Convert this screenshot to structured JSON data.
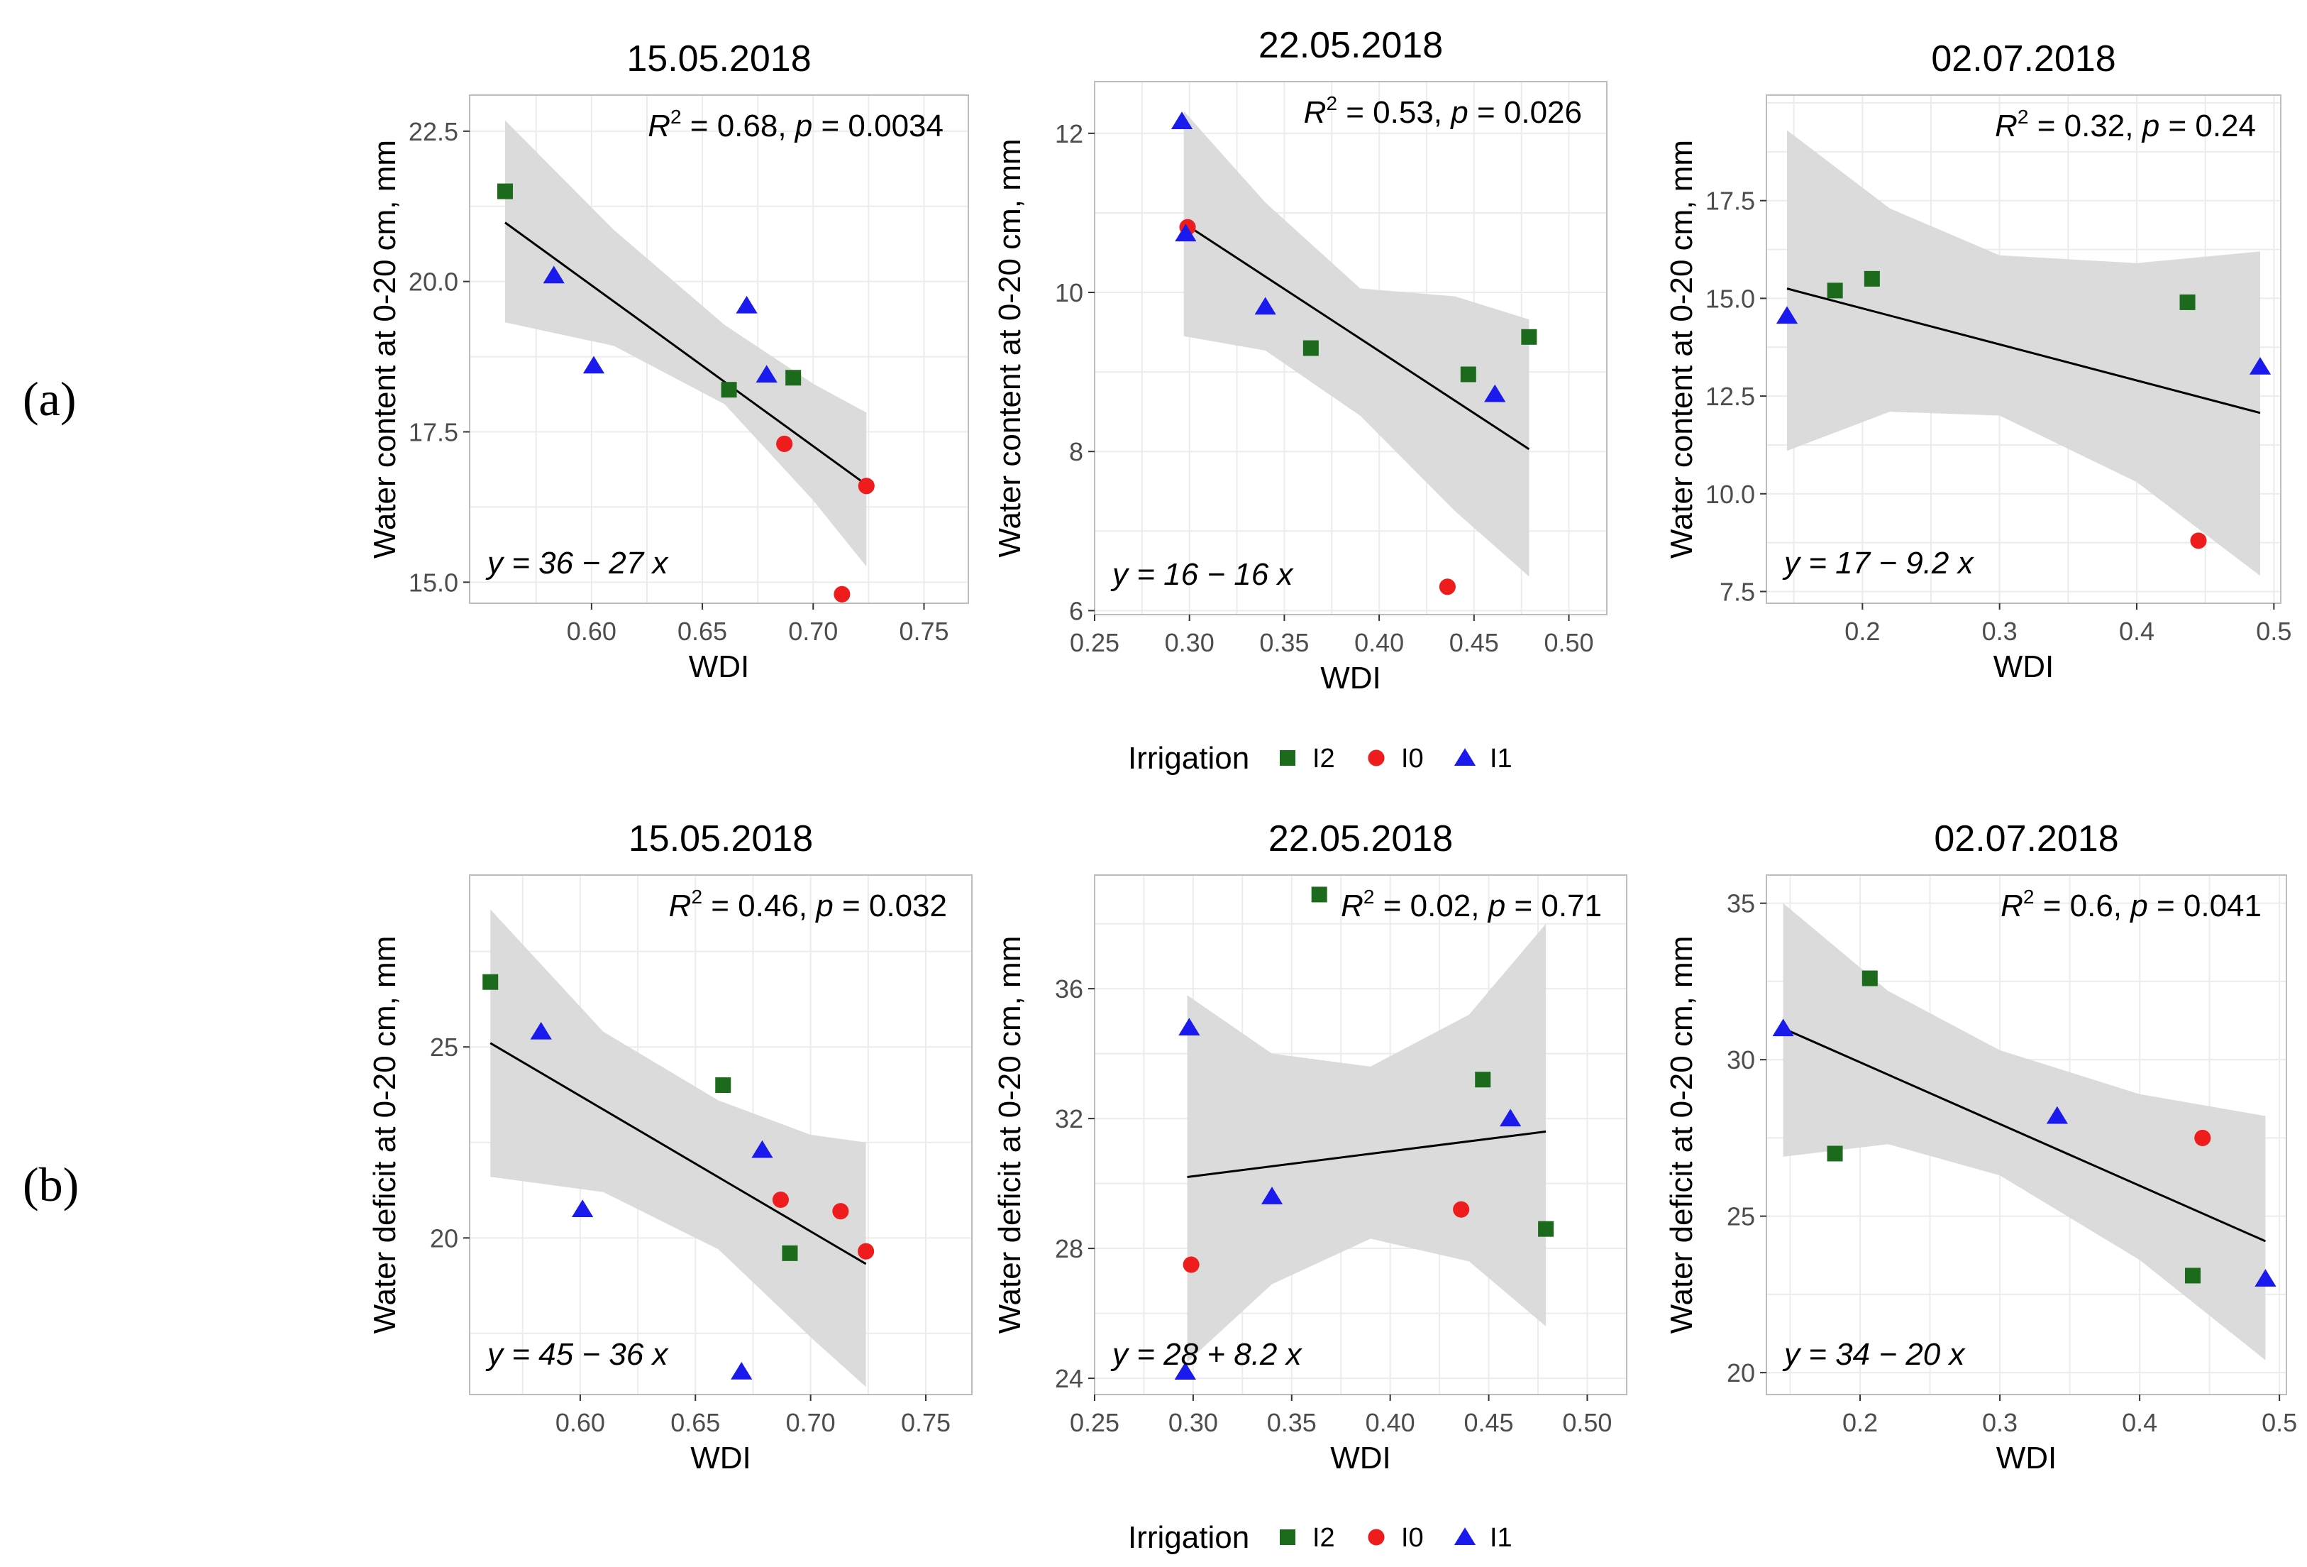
{
  "row_labels": {
    "a": "(a)",
    "b": "(b)"
  },
  "colors": {
    "I2": "#1c6b1c",
    "I0": "#ee1c1c",
    "I1": "#1a1aee",
    "ribbon": "#d9d9d9",
    "grid": "#ececec",
    "panel_border": "#bdbdbd",
    "axis_text": "#4d4d4d",
    "line": "#000000"
  },
  "legends": [
    {
      "title": "Irrigation",
      "entries": [
        {
          "key": "I2",
          "label": "I2",
          "shape": "square"
        },
        {
          "key": "I0",
          "label": "I0",
          "shape": "circle"
        },
        {
          "key": "I1",
          "label": "I1",
          "shape": "triangle"
        }
      ]
    },
    {
      "title": "Irrigation",
      "entries": [
        {
          "key": "I2",
          "label": "I2",
          "shape": "square"
        },
        {
          "key": "I0",
          "label": "I0",
          "shape": "circle"
        },
        {
          "key": "I1",
          "label": "I1",
          "shape": "triangle"
        }
      ]
    }
  ],
  "chart_data": [
    {
      "id": "a1",
      "type": "scatter",
      "title": "15.05.2018",
      "xlabel": "WDI",
      "ylabel": "Water content at 0-20 cm, mm",
      "xlim": [
        0.545,
        0.77
      ],
      "ylim": [
        14.65,
        23.1
      ],
      "xticks": [
        0.6,
        0.65,
        0.7,
        0.75
      ],
      "xtick_labels": [
        "0.60",
        "0.65",
        "0.70",
        "0.75"
      ],
      "yticks": [
        15.0,
        17.5,
        20.0,
        22.5
      ],
      "ytick_labels": [
        "15.0",
        "17.5",
        "20.0",
        "22.5"
      ],
      "stat_r2": "0.68",
      "stat_p": "0.0034",
      "equation": "y = 36 − 27 x",
      "fit": {
        "x0": 0.561,
        "x1": 0.724,
        "y0": 20.98,
        "y1": 16.62
      },
      "ribbon_upper": [
        [
          0.561,
          22.68
        ],
        [
          0.61,
          20.86
        ],
        [
          0.66,
          19.28
        ],
        [
          0.7,
          18.3
        ],
        [
          0.724,
          17.82
        ]
      ],
      "ribbon_lower": [
        [
          0.561,
          19.32
        ],
        [
          0.61,
          18.93
        ],
        [
          0.66,
          17.96
        ],
        [
          0.7,
          16.36
        ],
        [
          0.724,
          15.26
        ]
      ],
      "points": [
        {
          "g": "I2",
          "x": 0.561,
          "y": 21.5
        },
        {
          "g": "I2",
          "x": 0.662,
          "y": 18.2
        },
        {
          "g": "I2",
          "x": 0.691,
          "y": 18.4
        },
        {
          "g": "I0",
          "x": 0.687,
          "y": 17.3
        },
        {
          "g": "I0",
          "x": 0.713,
          "y": 14.8
        },
        {
          "g": "I0",
          "x": 0.724,
          "y": 16.6
        },
        {
          "g": "I1",
          "x": 0.583,
          "y": 20.1
        },
        {
          "g": "I1",
          "x": 0.601,
          "y": 18.6
        },
        {
          "g": "I1",
          "x": 0.67,
          "y": 19.6
        },
        {
          "g": "I1",
          "x": 0.679,
          "y": 18.45
        }
      ]
    },
    {
      "id": "a2",
      "type": "scatter",
      "title": "22.05.2018",
      "xlabel": "WDI",
      "ylabel": "Water content at 0-20 cm, mm",
      "xlim": [
        0.25,
        0.52
      ],
      "ylim": [
        5.95,
        12.65
      ],
      "xticks": [
        0.25,
        0.3,
        0.35,
        0.4,
        0.45,
        0.5
      ],
      "xtick_labels": [
        "0.25",
        "0.30",
        "0.35",
        "0.40",
        "0.45",
        "0.50"
      ],
      "yticks": [
        6,
        8,
        10,
        12
      ],
      "ytick_labels": [
        "6",
        "8",
        "10",
        "12"
      ],
      "stat_r2": "0.53",
      "stat_p": "0.026",
      "equation": "y = 16 − 16 x",
      "fit": {
        "x0": 0.297,
        "x1": 0.479,
        "y0": 10.87,
        "y1": 8.03
      },
      "ribbon_upper": [
        [
          0.297,
          12.28
        ],
        [
          0.34,
          11.13
        ],
        [
          0.39,
          10.05
        ],
        [
          0.44,
          9.95
        ],
        [
          0.479,
          9.66
        ]
      ],
      "ribbon_lower": [
        [
          0.297,
          9.45
        ],
        [
          0.34,
          9.27
        ],
        [
          0.39,
          8.45
        ],
        [
          0.44,
          7.25
        ],
        [
          0.479,
          6.43
        ]
      ],
      "points": [
        {
          "g": "I2",
          "x": 0.364,
          "y": 9.3
        },
        {
          "g": "I2",
          "x": 0.447,
          "y": 8.97
        },
        {
          "g": "I2",
          "x": 0.479,
          "y": 9.44
        },
        {
          "g": "I0",
          "x": 0.299,
          "y": 10.82
        },
        {
          "g": "I0",
          "x": 0.436,
          "y": 6.3
        },
        {
          "g": "I1",
          "x": 0.296,
          "y": 12.15
        },
        {
          "g": "I1",
          "x": 0.298,
          "y": 10.74
        },
        {
          "g": "I1",
          "x": 0.34,
          "y": 9.82
        },
        {
          "g": "I1",
          "x": 0.461,
          "y": 8.72
        }
      ]
    },
    {
      "id": "a3",
      "type": "scatter",
      "title": "02.07.2018",
      "xlabel": "WDI",
      "ylabel": "Water content at 0-20 cm, mm",
      "xlim": [
        0.13,
        0.505
      ],
      "ylim": [
        7.2,
        20.2
      ],
      "xticks": [
        0.2,
        0.3,
        0.4,
        0.5
      ],
      "xtick_labels": [
        "0.2",
        "0.3",
        "0.4",
        "0.5"
      ],
      "yticks": [
        7.5,
        10.0,
        12.5,
        15.0,
        17.5
      ],
      "ytick_labels": [
        "7.5",
        "10.0",
        "12.5",
        "15.0",
        "17.5"
      ],
      "stat_r2": "0.32",
      "stat_p": "0.24",
      "equation": "y = 17 − 9.2 x",
      "fit": {
        "x0": 0.145,
        "x1": 0.49,
        "y0": 15.25,
        "y1": 12.07
      },
      "ribbon_upper": [
        [
          0.145,
          19.3
        ],
        [
          0.22,
          17.3
        ],
        [
          0.3,
          16.1
        ],
        [
          0.4,
          15.9
        ],
        [
          0.49,
          16.2
        ]
      ],
      "ribbon_lower": [
        [
          0.145,
          11.1
        ],
        [
          0.22,
          12.1
        ],
        [
          0.3,
          12.0
        ],
        [
          0.4,
          10.3
        ],
        [
          0.49,
          7.9
        ]
      ],
      "points": [
        {
          "g": "I2",
          "x": 0.18,
          "y": 15.2
        },
        {
          "g": "I2",
          "x": 0.207,
          "y": 15.5
        },
        {
          "g": "I2",
          "x": 0.437,
          "y": 14.9
        },
        {
          "g": "I0",
          "x": 0.445,
          "y": 8.8
        },
        {
          "g": "I1",
          "x": 0.145,
          "y": 14.55
        },
        {
          "g": "I1",
          "x": 0.49,
          "y": 13.25
        }
      ]
    },
    {
      "id": "b1",
      "type": "scatter",
      "title": "15.05.2018",
      "xlabel": "WDI",
      "ylabel": "Water deficit at 0-20 cm, mm",
      "xlim": [
        0.552,
        0.77
      ],
      "ylim": [
        15.9,
        29.5
      ],
      "xticks": [
        0.6,
        0.65,
        0.7,
        0.75
      ],
      "xtick_labels": [
        "0.60",
        "0.65",
        "0.70",
        "0.75"
      ],
      "yticks": [
        20,
        25
      ],
      "ytick_labels": [
        "20",
        "25"
      ],
      "stat_r2": "0.46",
      "stat_p": "0.032",
      "equation": "y = 45 − 36 x",
      "fit": {
        "x0": 0.561,
        "x1": 0.724,
        "y0": 25.1,
        "y1": 19.32
      },
      "ribbon_upper": [
        [
          0.561,
          28.6
        ],
        [
          0.61,
          25.4
        ],
        [
          0.66,
          23.6
        ],
        [
          0.7,
          22.7
        ],
        [
          0.724,
          22.5
        ]
      ],
      "ribbon_lower": [
        [
          0.561,
          21.6
        ],
        [
          0.61,
          21.2
        ],
        [
          0.66,
          19.7
        ],
        [
          0.7,
          17.4
        ],
        [
          0.724,
          16.1
        ]
      ],
      "points": [
        {
          "g": "I2",
          "x": 0.561,
          "y": 26.7
        },
        {
          "g": "I2",
          "x": 0.662,
          "y": 24.0
        },
        {
          "g": "I2",
          "x": 0.691,
          "y": 19.6
        },
        {
          "g": "I0",
          "x": 0.687,
          "y": 21.0
        },
        {
          "g": "I0",
          "x": 0.713,
          "y": 20.7
        },
        {
          "g": "I0",
          "x": 0.724,
          "y": 19.65
        },
        {
          "g": "I1",
          "x": 0.583,
          "y": 25.4
        },
        {
          "g": "I1",
          "x": 0.601,
          "y": 20.75
        },
        {
          "g": "I1",
          "x": 0.67,
          "y": 16.5
        },
        {
          "g": "I1",
          "x": 0.679,
          "y": 22.3
        }
      ]
    },
    {
      "id": "b2",
      "type": "scatter",
      "title": "22.05.2018",
      "xlabel": "WDI",
      "ylabel": "Water deficit at 0-20 cm, mm",
      "xlim": [
        0.25,
        0.52
      ],
      "ylim": [
        23.5,
        39.5
      ],
      "xticks": [
        0.25,
        0.3,
        0.35,
        0.4,
        0.45,
        0.5
      ],
      "xtick_labels": [
        "0.25",
        "0.30",
        "0.35",
        "0.40",
        "0.45",
        "0.50"
      ],
      "yticks": [
        24,
        28,
        32,
        36
      ],
      "ytick_labels": [
        "24",
        "28",
        "32",
        "36"
      ],
      "stat_r2": "0.02",
      "stat_p": "0.71",
      "equation": "y = 28 + 8.2 x",
      "fit": {
        "x0": 0.297,
        "x1": 0.479,
        "y0": 30.2,
        "y1": 31.6
      },
      "ribbon_upper": [
        [
          0.297,
          35.8
        ],
        [
          0.34,
          34.0
        ],
        [
          0.39,
          33.6
        ],
        [
          0.44,
          35.2
        ],
        [
          0.479,
          38.0
        ]
      ],
      "ribbon_lower": [
        [
          0.297,
          24.5
        ],
        [
          0.34,
          26.9
        ],
        [
          0.39,
          28.3
        ],
        [
          0.44,
          27.6
        ],
        [
          0.479,
          25.6
        ]
      ],
      "points": [
        {
          "g": "I2",
          "x": 0.364,
          "y": 38.9
        },
        {
          "g": "I2",
          "x": 0.447,
          "y": 33.2
        },
        {
          "g": "I2",
          "x": 0.479,
          "y": 28.6
        },
        {
          "g": "I0",
          "x": 0.299,
          "y": 27.5
        },
        {
          "g": "I0",
          "x": 0.436,
          "y": 29.2
        },
        {
          "g": "I1",
          "x": 0.296,
          "y": 24.2
        },
        {
          "g": "I1",
          "x": 0.298,
          "y": 34.8
        },
        {
          "g": "I1",
          "x": 0.34,
          "y": 29.6
        },
        {
          "g": "I1",
          "x": 0.461,
          "y": 32.0
        }
      ]
    },
    {
      "id": "b3",
      "type": "scatter",
      "title": "02.07.2018",
      "xlabel": "WDI",
      "ylabel": "Water deficit at 0-20 cm, mm",
      "xlim": [
        0.133,
        0.505
      ],
      "ylim": [
        19.3,
        35.9
      ],
      "xticks": [
        0.2,
        0.3,
        0.4,
        0.5
      ],
      "xtick_labels": [
        "0.2",
        "0.3",
        "0.4",
        "0.5"
      ],
      "yticks": [
        20,
        25,
        30,
        35
      ],
      "ytick_labels": [
        "20",
        "25",
        "30",
        "35"
      ],
      "stat_r2": "0.6",
      "stat_p": "0.041",
      "equation": "y = 34 − 20 x",
      "fit": {
        "x0": 0.145,
        "x1": 0.49,
        "y0": 31.0,
        "y1": 24.2
      },
      "ribbon_upper": [
        [
          0.145,
          35.0
        ],
        [
          0.22,
          32.2
        ],
        [
          0.3,
          30.3
        ],
        [
          0.4,
          28.9
        ],
        [
          0.49,
          28.2
        ]
      ],
      "ribbon_lower": [
        [
          0.145,
          26.9
        ],
        [
          0.22,
          27.3
        ],
        [
          0.3,
          26.3
        ],
        [
          0.4,
          23.6
        ],
        [
          0.49,
          20.4
        ]
      ],
      "points": [
        {
          "g": "I2",
          "x": 0.182,
          "y": 27.0
        },
        {
          "g": "I2",
          "x": 0.207,
          "y": 32.6
        },
        {
          "g": "I2",
          "x": 0.438,
          "y": 23.1
        },
        {
          "g": "I0",
          "x": 0.445,
          "y": 27.5
        },
        {
          "g": "I1",
          "x": 0.145,
          "y": 31.0
        },
        {
          "g": "I1",
          "x": 0.341,
          "y": 28.2
        },
        {
          "g": "I1",
          "x": 0.49,
          "y": 23.0
        }
      ]
    }
  ]
}
